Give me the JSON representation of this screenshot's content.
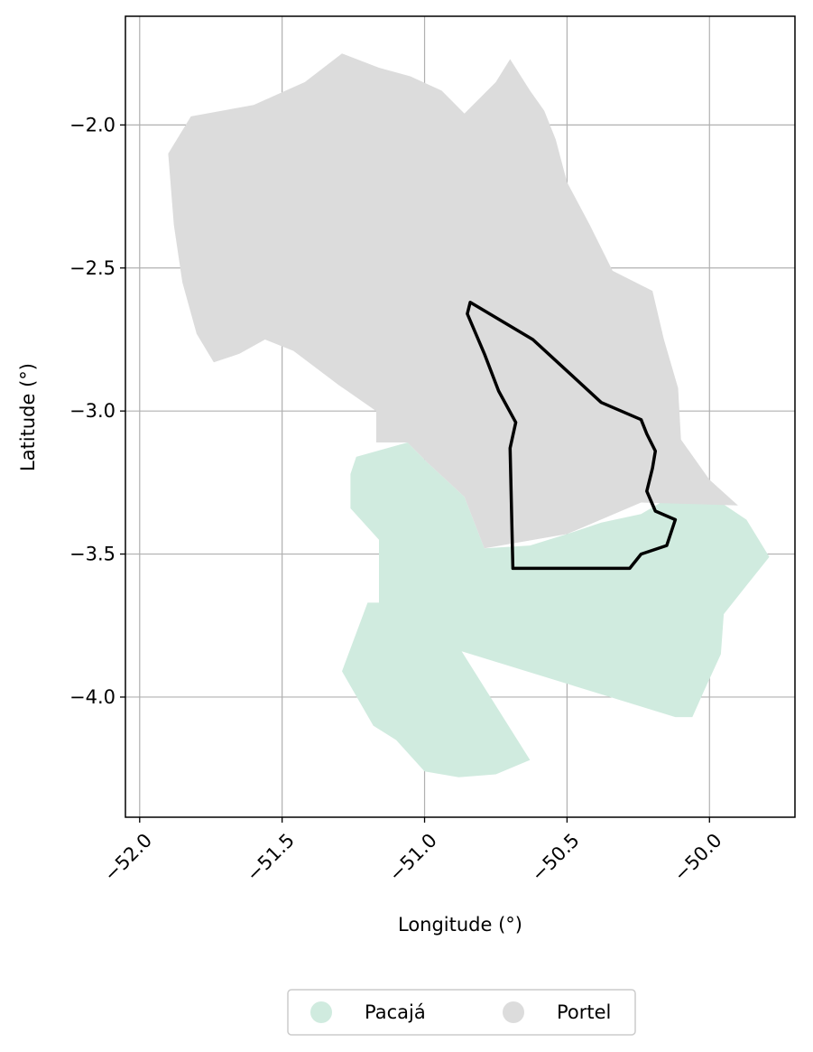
{
  "chart_data": {
    "type": "map",
    "xlabel": "Longitude (°)",
    "ylabel": "Latitude (°)",
    "xlim": [
      -52.05,
      -49.7
    ],
    "ylim": [
      -4.42,
      -1.62
    ],
    "grid": true,
    "x_ticks": [
      {
        "value": -52.0,
        "label": "−52.0"
      },
      {
        "value": -51.5,
        "label": "−51.5"
      },
      {
        "value": -51.0,
        "label": "−51.0"
      },
      {
        "value": -50.5,
        "label": "−50.5"
      },
      {
        "value": -50.0,
        "label": "−50.0"
      }
    ],
    "y_ticks": [
      {
        "value": -2.0,
        "label": "−2.0"
      },
      {
        "value": -2.5,
        "label": "−2.5"
      },
      {
        "value": -3.0,
        "label": "−3.0"
      },
      {
        "value": -3.5,
        "label": "−3.5"
      },
      {
        "value": -4.0,
        "label": "−4.0"
      }
    ],
    "legend_position": "bottom-center",
    "regions": [
      {
        "name": "Pacajá",
        "color": "#d0ebdf",
        "coords": [
          [
            -51.24,
            -3.16
          ],
          [
            -51.06,
            -3.11
          ],
          [
            -50.99,
            -3.18
          ],
          [
            -50.86,
            -3.3
          ],
          [
            -50.79,
            -3.48
          ],
          [
            -50.63,
            -3.47
          ],
          [
            -50.5,
            -3.43
          ],
          [
            -50.38,
            -3.39
          ],
          [
            -50.24,
            -3.36
          ],
          [
            -50.12,
            -3.29
          ],
          [
            -49.96,
            -3.32
          ],
          [
            -49.87,
            -3.38
          ],
          [
            -49.79,
            -3.51
          ],
          [
            -49.87,
            -3.61
          ],
          [
            -49.95,
            -3.71
          ],
          [
            -49.96,
            -3.85
          ],
          [
            -50.02,
            -3.98
          ],
          [
            -50.06,
            -4.07
          ],
          [
            -50.12,
            -4.07
          ],
          [
            -50.87,
            -3.84
          ],
          [
            -50.63,
            -4.22
          ],
          [
            -50.75,
            -4.27
          ],
          [
            -50.88,
            -4.28
          ],
          [
            -51.0,
            -4.26
          ],
          [
            -51.1,
            -4.15
          ],
          [
            -51.18,
            -4.1
          ],
          [
            -51.29,
            -3.91
          ],
          [
            -51.2,
            -3.67
          ],
          [
            -51.16,
            -3.67
          ],
          [
            -51.16,
            -3.45
          ],
          [
            -51.26,
            -3.34
          ],
          [
            -51.26,
            -3.22
          ]
        ]
      },
      {
        "name": "Portel",
        "color": "#dcdcdc",
        "coords": [
          [
            -51.82,
            -1.97
          ],
          [
            -51.6,
            -1.93
          ],
          [
            -51.42,
            -1.85
          ],
          [
            -51.29,
            -1.75
          ],
          [
            -51.16,
            -1.8
          ],
          [
            -51.05,
            -1.83
          ],
          [
            -50.94,
            -1.88
          ],
          [
            -50.86,
            -1.96
          ],
          [
            -50.75,
            -1.85
          ],
          [
            -50.7,
            -1.77
          ],
          [
            -50.63,
            -1.88
          ],
          [
            -50.58,
            -1.95
          ],
          [
            -50.54,
            -2.05
          ],
          [
            -50.5,
            -2.2
          ],
          [
            -50.42,
            -2.35
          ],
          [
            -50.34,
            -2.51
          ],
          [
            -50.2,
            -2.58
          ],
          [
            -50.16,
            -2.75
          ],
          [
            -50.11,
            -2.92
          ],
          [
            -50.1,
            -3.1
          ],
          [
            -50.0,
            -3.24
          ],
          [
            -49.9,
            -3.33
          ],
          [
            -50.24,
            -3.32
          ],
          [
            -50.5,
            -3.43
          ],
          [
            -50.79,
            -3.48
          ],
          [
            -50.86,
            -3.3
          ],
          [
            -50.99,
            -3.18
          ],
          [
            -51.06,
            -3.11
          ],
          [
            -51.17,
            -3.11
          ],
          [
            -51.17,
            -3.0
          ],
          [
            -51.3,
            -2.91
          ],
          [
            -51.46,
            -2.79
          ],
          [
            -51.56,
            -2.75
          ],
          [
            -51.65,
            -2.8
          ],
          [
            -51.74,
            -2.83
          ],
          [
            -51.8,
            -2.73
          ],
          [
            -51.85,
            -2.55
          ],
          [
            -51.88,
            -2.35
          ],
          [
            -51.9,
            -2.1
          ]
        ]
      }
    ],
    "outline": {
      "color": "#000000",
      "coords": [
        [
          -50.84,
          -2.62
        ],
        [
          -50.62,
          -2.75
        ],
        [
          -50.5,
          -2.86
        ],
        [
          -50.38,
          -2.97
        ],
        [
          -50.24,
          -3.03
        ],
        [
          -50.22,
          -3.08
        ],
        [
          -50.19,
          -3.14
        ],
        [
          -50.2,
          -3.2
        ],
        [
          -50.22,
          -3.28
        ],
        [
          -50.19,
          -3.35
        ],
        [
          -50.12,
          -3.38
        ],
        [
          -50.15,
          -3.47
        ],
        [
          -50.24,
          -3.5
        ],
        [
          -50.28,
          -3.55
        ],
        [
          -50.69,
          -3.55
        ],
        [
          -50.7,
          -3.13
        ],
        [
          -50.68,
          -3.04
        ],
        [
          -50.74,
          -2.93
        ],
        [
          -50.79,
          -2.8
        ],
        [
          -50.85,
          -2.66
        ]
      ]
    },
    "legend": [
      {
        "label": "Pacajá",
        "color": "#d0ebdf"
      },
      {
        "label": "Portel",
        "color": "#dcdcdc"
      }
    ]
  }
}
